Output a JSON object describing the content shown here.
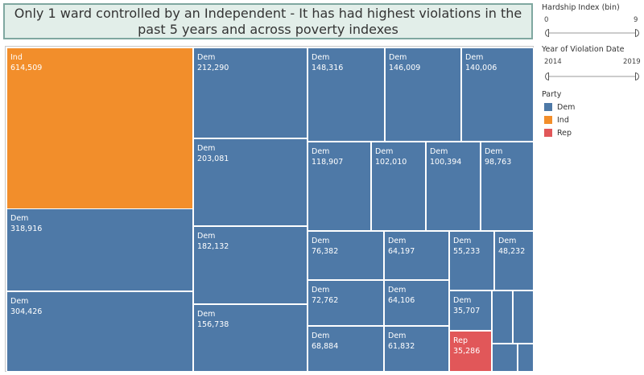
{
  "title": "Only 1 ward controlled by an Independent - It has had highest violations in the past 5 years and across poverty indexes",
  "filters": {
    "hardship": {
      "title": "Hardship Index (bin)",
      "min_label": "0",
      "max_label": "9"
    },
    "year": {
      "title": "Year of Violation Date",
      "min_label": "2014",
      "max_label": "2019"
    }
  },
  "legend": {
    "title": "Party",
    "items": [
      {
        "label": "Dem",
        "color": "#4e79a7"
      },
      {
        "label": "Ind",
        "color": "#f28e2b"
      },
      {
        "label": "Rep",
        "color": "#e15759"
      }
    ]
  },
  "chart_data": {
    "type": "treemap",
    "measure": "violations",
    "color_by": "party",
    "cells": [
      {
        "party": "Ind",
        "value": 614509
      },
      {
        "party": "Dem",
        "value": 318916
      },
      {
        "party": "Dem",
        "value": 304426
      },
      {
        "party": "Dem",
        "value": 212290
      },
      {
        "party": "Dem",
        "value": 203081
      },
      {
        "party": "Dem",
        "value": 182132
      },
      {
        "party": "Dem",
        "value": 156738
      },
      {
        "party": "Dem",
        "value": 148316
      },
      {
        "party": "Dem",
        "value": 146009
      },
      {
        "party": "Dem",
        "value": 140006
      },
      {
        "party": "Dem",
        "value": 118907
      },
      {
        "party": "Dem",
        "value": 102010
      },
      {
        "party": "Dem",
        "value": 100394
      },
      {
        "party": "Dem",
        "value": 98763
      },
      {
        "party": "Dem",
        "value": 76382
      },
      {
        "party": "Dem",
        "value": 64197
      },
      {
        "party": "Dem",
        "value": 55233
      },
      {
        "party": "Dem",
        "value": 48232
      },
      {
        "party": "Dem",
        "value": 72762
      },
      {
        "party": "Dem",
        "value": 64106
      },
      {
        "party": "Dem",
        "value": 35707
      },
      {
        "party": "Dem",
        "value": 68884
      },
      {
        "party": "Dem",
        "value": 61832
      },
      {
        "party": "Rep",
        "value": 35286
      },
      {
        "party": "Dem"
      },
      {
        "party": "Dem"
      },
      {
        "party": "Dem"
      },
      {
        "party": "Dem"
      }
    ]
  }
}
